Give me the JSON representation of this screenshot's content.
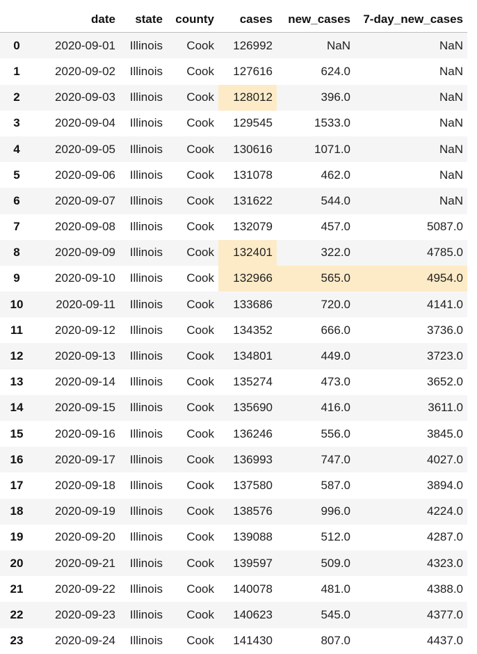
{
  "table": {
    "columns": [
      "",
      "date",
      "state",
      "county",
      "cases",
      "new_cases",
      "7-day_new_cases"
    ],
    "highlight_color": "#fdebc8",
    "highlighted_cells": [
      [
        2,
        4
      ],
      [
        8,
        4
      ],
      [
        9,
        4
      ],
      [
        9,
        5
      ],
      [
        9,
        6
      ]
    ],
    "rows": [
      [
        "0",
        "2020-09-01",
        "Illinois",
        "Cook",
        "126992",
        "NaN",
        "NaN"
      ],
      [
        "1",
        "2020-09-02",
        "Illinois",
        "Cook",
        "127616",
        "624.0",
        "NaN"
      ],
      [
        "2",
        "2020-09-03",
        "Illinois",
        "Cook",
        "128012",
        "396.0",
        "NaN"
      ],
      [
        "3",
        "2020-09-04",
        "Illinois",
        "Cook",
        "129545",
        "1533.0",
        "NaN"
      ],
      [
        "4",
        "2020-09-05",
        "Illinois",
        "Cook",
        "130616",
        "1071.0",
        "NaN"
      ],
      [
        "5",
        "2020-09-06",
        "Illinois",
        "Cook",
        "131078",
        "462.0",
        "NaN"
      ],
      [
        "6",
        "2020-09-07",
        "Illinois",
        "Cook",
        "131622",
        "544.0",
        "NaN"
      ],
      [
        "7",
        "2020-09-08",
        "Illinois",
        "Cook",
        "132079",
        "457.0",
        "5087.0"
      ],
      [
        "8",
        "2020-09-09",
        "Illinois",
        "Cook",
        "132401",
        "322.0",
        "4785.0"
      ],
      [
        "9",
        "2020-09-10",
        "Illinois",
        "Cook",
        "132966",
        "565.0",
        "4954.0"
      ],
      [
        "10",
        "2020-09-11",
        "Illinois",
        "Cook",
        "133686",
        "720.0",
        "4141.0"
      ],
      [
        "11",
        "2020-09-12",
        "Illinois",
        "Cook",
        "134352",
        "666.0",
        "3736.0"
      ],
      [
        "12",
        "2020-09-13",
        "Illinois",
        "Cook",
        "134801",
        "449.0",
        "3723.0"
      ],
      [
        "13",
        "2020-09-14",
        "Illinois",
        "Cook",
        "135274",
        "473.0",
        "3652.0"
      ],
      [
        "14",
        "2020-09-15",
        "Illinois",
        "Cook",
        "135690",
        "416.0",
        "3611.0"
      ],
      [
        "15",
        "2020-09-16",
        "Illinois",
        "Cook",
        "136246",
        "556.0",
        "3845.0"
      ],
      [
        "16",
        "2020-09-17",
        "Illinois",
        "Cook",
        "136993",
        "747.0",
        "4027.0"
      ],
      [
        "17",
        "2020-09-18",
        "Illinois",
        "Cook",
        "137580",
        "587.0",
        "3894.0"
      ],
      [
        "18",
        "2020-09-19",
        "Illinois",
        "Cook",
        "138576",
        "996.0",
        "4224.0"
      ],
      [
        "19",
        "2020-09-20",
        "Illinois",
        "Cook",
        "139088",
        "512.0",
        "4287.0"
      ],
      [
        "20",
        "2020-09-21",
        "Illinois",
        "Cook",
        "139597",
        "509.0",
        "4323.0"
      ],
      [
        "21",
        "2020-09-22",
        "Illinois",
        "Cook",
        "140078",
        "481.0",
        "4388.0"
      ],
      [
        "22",
        "2020-09-23",
        "Illinois",
        "Cook",
        "140623",
        "545.0",
        "4377.0"
      ],
      [
        "23",
        "2020-09-24",
        "Illinois",
        "Cook",
        "141430",
        "807.0",
        "4437.0"
      ]
    ]
  }
}
